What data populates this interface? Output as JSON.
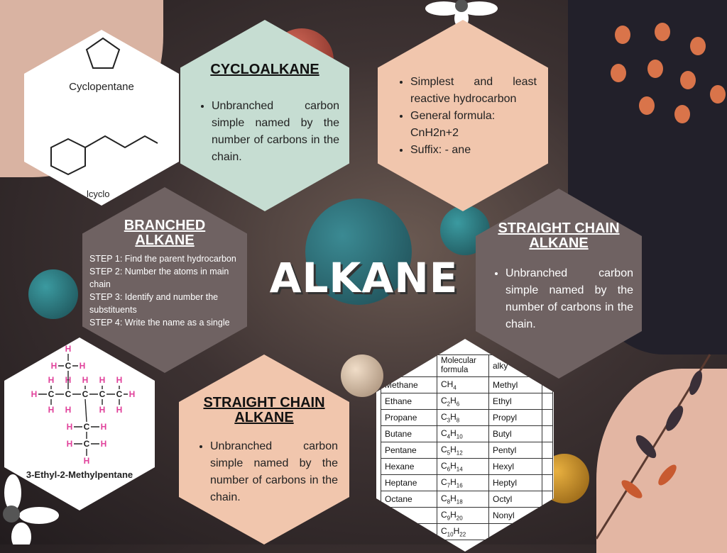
{
  "title": "ALKANE",
  "cycloalkane": {
    "title": "CYCLOALKANE",
    "bullet": "Unbranched carbon simple named by the number of carbons in the chain."
  },
  "alkane_info": {
    "bullets": [
      "Simplest and least reactive hydrocarbon",
      "General formula: CnH2n+2",
      "Suffix: - ane"
    ]
  },
  "branched": {
    "title_line1": "BRANCHED",
    "title_line2": "ALKANE",
    "steps": [
      "STEP 1: Find the parent hydrocarbon",
      "STEP 2: Number the atoms in main chain",
      "STEP 3: Identify and number the substituents",
      "STEP 4: Write the name as a single"
    ]
  },
  "straight_right": {
    "title_line1": "STRAIGHT CHAIN",
    "title_line2": "ALKANE",
    "bullet": "Unbranched carbon simple named by the number of carbons in the chain."
  },
  "straight_bottom": {
    "title_line1": "STRAIGHT CHAIN",
    "title_line2": "ALKANE",
    "bullet": "Unbranched carbon simple named by the number of carbons in the chain."
  },
  "cyclo_image": {
    "label": "Cyclopentane",
    "partial_label": "lcyclo"
  },
  "branched_image": {
    "label": "3-Ethyl-2-Methylpentane",
    "atom_h": "H",
    "atom_c": "C"
  },
  "table": {
    "header": [
      "Molecular formula",
      "alky"
    ],
    "rows": [
      [
        "Methane",
        "CH4",
        "Methyl"
      ],
      [
        "Ethane",
        "C2H6",
        "Ethyl"
      ],
      [
        "Propane",
        "C3H8",
        "Propyl"
      ],
      [
        "Butane",
        "C4H10",
        "Butyl"
      ],
      [
        "Pentane",
        "C5H12",
        "Pentyl"
      ],
      [
        "Hexane",
        "C6H14",
        "Hexyl"
      ],
      [
        "Heptane",
        "C7H16",
        "Heptyl"
      ],
      [
        "Octane",
        "C8H18",
        "Octyl"
      ],
      [
        "ne",
        "C9H20",
        "Nonyl"
      ],
      [
        "",
        "C10H22",
        ""
      ]
    ]
  },
  "colors": {
    "mint": "#c6ddd2",
    "peach": "#f1c6ad",
    "taupe": "#6f6262",
    "white": "#ffffff"
  }
}
